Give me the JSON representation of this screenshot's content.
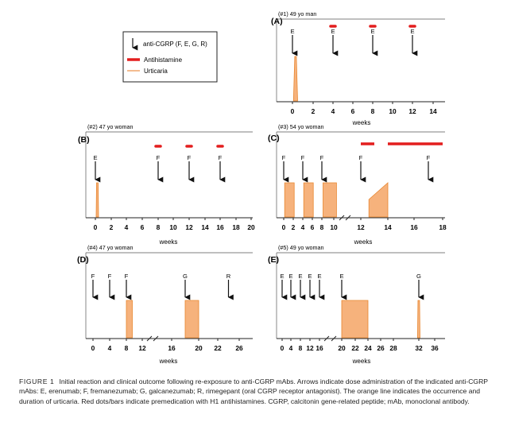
{
  "figure": {
    "legend": {
      "arrow_label": "anti-CGRP (F, E, G, R)",
      "antihistamine_label": "Antihistamine",
      "urticaria_label": "Urticaria"
    },
    "caption": {
      "label": "FIGURE 1",
      "text": "Initial reaction and clinical outcome following re-exposure to anti-CGRP mAbs. Arrows indicate dose administration of the indicated anti-CGRP mAbs: E, erenumab; F, fremanezumab; G, galcanezumab; R, rimegepant (oral CGRP receptor antagonist). The orange line indicates the occurrence and duration of urticaria. Red dots/bars indicate premedication with H1 antihistamines. CGRP, calcitonin gene-related peptide; mAb, monoclonal antibody."
    }
  },
  "colors": {
    "urticaria_fill": "#f6b27c",
    "urticaria_line": "#e8862f",
    "antihistamine": "#e31e1e",
    "axis": "#222222"
  },
  "chart_data": [
    {
      "type": "timeline",
      "panel": "(A)",
      "title": "(#1) 49 yo man",
      "xlabel": "weeks",
      "ticks": [
        "0",
        "2",
        "4",
        "6",
        "8",
        "10",
        "12",
        "14"
      ],
      "doses": [
        {
          "week": 0,
          "drug": "E"
        },
        {
          "week": 4,
          "drug": "E"
        },
        {
          "week": 8,
          "drug": "E"
        },
        {
          "week": 12,
          "drug": "E"
        }
      ],
      "antihistamine_weeks": [
        4,
        8,
        12
      ],
      "urticaria": [
        {
          "start": 0.1,
          "end": 0.5,
          "shape": "spike"
        }
      ]
    },
    {
      "type": "timeline",
      "panel": "(B)",
      "title": "(#2) 47 yo woman",
      "xlabel": "weeks",
      "ticks": [
        "0",
        "2",
        "4",
        "6",
        "8",
        "10",
        "12",
        "14",
        "16",
        "18",
        "20"
      ],
      "doses": [
        {
          "week": 0,
          "drug": "E"
        },
        {
          "week": 8,
          "drug": "F"
        },
        {
          "week": 12,
          "drug": "F"
        },
        {
          "week": 16,
          "drug": "F"
        }
      ],
      "antihistamine_weeks": [
        8,
        12,
        16
      ],
      "urticaria": [
        {
          "start": 0.1,
          "end": 0.4,
          "shape": "spike"
        }
      ]
    },
    {
      "type": "timeline",
      "panel": "(C)",
      "title": "(#3) 54 yo woman",
      "xlabel": "weeks",
      "ticks": [
        "0",
        "2",
        "4",
        "6",
        "8",
        "10",
        "12",
        "14",
        "16",
        "18"
      ],
      "axis_break_after": "10",
      "doses": [
        {
          "week": 0,
          "drug": "F"
        },
        {
          "week": 4,
          "drug": "F"
        },
        {
          "week": 8,
          "drug": "F"
        },
        {
          "week": 12,
          "drug": "F"
        },
        {
          "week": 17,
          "drug": "F"
        }
      ],
      "antihistamine_ranges": [
        [
          12,
          13
        ],
        [
          14,
          18
        ]
      ],
      "urticaria": [
        {
          "start": 0.2,
          "end": 2.2,
          "shape": "block"
        },
        {
          "start": 4.2,
          "end": 6.2,
          "shape": "block"
        },
        {
          "start": 8.2,
          "end": 10.2,
          "shape": "block"
        },
        {
          "start": 12.6,
          "end": 14,
          "shape": "ramp"
        }
      ]
    },
    {
      "type": "timeline",
      "panel": "(D)",
      "title": "(#4) 47 yo woman",
      "xlabel": "weeks",
      "ticks": [
        "0",
        "4",
        "8",
        "12",
        "16",
        "20",
        "22",
        "26"
      ],
      "axis_break_after": "12",
      "doses": [
        {
          "week": 0,
          "drug": "F"
        },
        {
          "week": 4,
          "drug": "F"
        },
        {
          "week": 8,
          "drug": "F"
        },
        {
          "week": 18,
          "drug": "G"
        },
        {
          "week": 24,
          "drug": "R"
        }
      ],
      "antihistamine_weeks": [],
      "urticaria": [
        {
          "start": 8,
          "end": 9.5,
          "shape": "block"
        },
        {
          "start": 18,
          "end": 20,
          "shape": "block"
        }
      ]
    },
    {
      "type": "timeline",
      "panel": "(E)",
      "title": "(#5) 49 yo woman",
      "xlabel": "weeks",
      "ticks": [
        "0",
        "4",
        "8",
        "12",
        "16",
        "20",
        "22",
        "24",
        "26",
        "28",
        "32",
        "36"
      ],
      "axis_break_after": "16",
      "doses": [
        {
          "week": 0,
          "drug": "E"
        },
        {
          "week": 4,
          "drug": "E"
        },
        {
          "week": 8,
          "drug": "E"
        },
        {
          "week": 12,
          "drug": "E"
        },
        {
          "week": 16,
          "drug": "E"
        },
        {
          "week": 20,
          "drug": "E"
        },
        {
          "week": 32,
          "drug": "G"
        }
      ],
      "antihistamine_weeks": [],
      "urticaria": [
        {
          "start": 20,
          "end": 24,
          "shape": "block"
        },
        {
          "start": 31.8,
          "end": 32.3,
          "shape": "spike"
        }
      ]
    }
  ]
}
